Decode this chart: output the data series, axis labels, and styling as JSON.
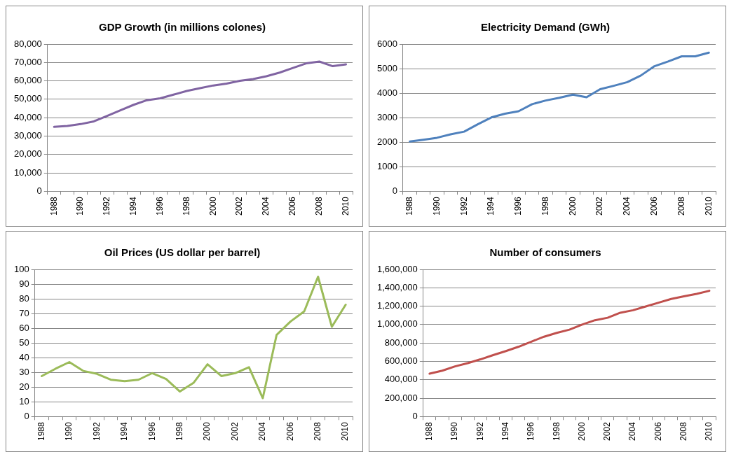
{
  "chart_data": [
    {
      "type": "line",
      "title": "GDP Growth (in millions colones)",
      "categories": [
        "1988",
        null,
        "1990",
        null,
        "1992",
        null,
        "1994",
        null,
        "1996",
        null,
        "1998",
        null,
        "2000",
        null,
        "2002",
        null,
        "2004",
        null,
        "2006",
        null,
        "2008",
        null,
        "2010"
      ],
      "series": [
        {
          "color": "#8064a2",
          "values": [
            35000,
            35500,
            36500,
            38000,
            41000,
            44000,
            47000,
            49500,
            50500,
            52500,
            54500,
            56000,
            57500,
            58500,
            60000,
            61000,
            62500,
            64500,
            67000,
            69500,
            70500,
            68000,
            69000
          ]
        }
      ],
      "ylim": [
        0,
        80000
      ],
      "yticks": [
        0,
        {
          "value": 10000,
          "label": "10,000"
        },
        {
          "value": 20000,
          "label": "20,000"
        },
        {
          "value": 30000,
          "label": "30,000"
        },
        {
          "value": 40000,
          "label": "40,000"
        },
        {
          "value": 50000,
          "label": "50,000"
        },
        {
          "value": 60000,
          "label": "60,000"
        },
        {
          "value": 70000,
          "label": "70,000"
        },
        {
          "value": 80000,
          "label": "80,000"
        }
      ],
      "grid": "y",
      "legend": false
    },
    {
      "type": "line",
      "title": "Electricity Demand (GWh)",
      "categories": [
        "1988",
        null,
        "1990",
        null,
        "1992",
        null,
        "1994",
        null,
        "1996",
        null,
        "1998",
        null,
        "2000",
        null,
        "2002",
        null,
        "2004",
        null,
        "2006",
        null,
        "2008",
        null,
        "2010"
      ],
      "series": [
        {
          "color": "#4f81bd",
          "values": [
            2030,
            2100,
            2180,
            2320,
            2430,
            2730,
            3010,
            3160,
            3260,
            3550,
            3700,
            3810,
            3940,
            3830,
            4160,
            4300,
            4450,
            4720,
            5100,
            5290,
            5500,
            5500,
            5650
          ]
        }
      ],
      "ylim": [
        0,
        6000
      ],
      "yticks": [
        0,
        1000,
        2000,
        3000,
        4000,
        5000,
        6000
      ],
      "grid": "y",
      "legend": false
    },
    {
      "type": "line",
      "title": "Oil Prices (US dollar per barrel)",
      "categories": [
        "1988",
        null,
        "1990",
        null,
        "1992",
        null,
        "1994",
        null,
        "1996",
        null,
        "1998",
        null,
        "2000",
        null,
        "2002",
        null,
        "2004",
        null,
        "2006",
        null,
        "2008",
        null,
        "2010"
      ],
      "series": [
        {
          "color": "#9bbb59",
          "values": [
            27.5,
            32.5,
            37,
            31,
            29,
            25,
            24,
            25,
            29.5,
            25.5,
            17,
            23,
            35.5,
            27.5,
            29.5,
            33.5,
            12.5,
            55.5,
            64.5,
            71.5,
            95,
            61,
            76
          ]
        }
      ],
      "ylim": [
        0,
        100
      ],
      "yticks": [
        0,
        10,
        20,
        30,
        40,
        50,
        60,
        70,
        80,
        90,
        100
      ],
      "grid": "y",
      "legend": false
    },
    {
      "type": "line",
      "title": "Number of consumers",
      "categories": [
        "1988",
        null,
        "1990",
        null,
        "1992",
        null,
        "1994",
        null,
        "1996",
        null,
        "1998",
        null,
        "2000",
        null,
        "2002",
        null,
        "2004",
        null,
        "2006",
        null,
        "2008",
        null,
        "2010"
      ],
      "series": [
        {
          "color": "#c0504d",
          "values": [
            466000,
            499000,
            545000,
            581000,
            622000,
            668000,
            712000,
            759000,
            814000,
            868000,
            910000,
            945000,
            1000000,
            1047000,
            1074000,
            1129000,
            1156000,
            1197000,
            1238000,
            1279000,
            1307000,
            1334000,
            1367000
          ]
        }
      ],
      "ylim": [
        0,
        1600000
      ],
      "yticks": [
        0,
        {
          "value": 200000,
          "label": "200,000"
        },
        {
          "value": 400000,
          "label": "400,000"
        },
        {
          "value": 600000,
          "label": "600,000"
        },
        {
          "value": 800000,
          "label": "800,000"
        },
        {
          "value": 1000000,
          "label": "1,000,000"
        },
        {
          "value": 1200000,
          "label": "1,200,000"
        },
        {
          "value": 1400000,
          "label": "1,400,000"
        },
        {
          "value": 1600000,
          "label": "1,600,000"
        }
      ],
      "grid": "y",
      "legend": false
    }
  ]
}
